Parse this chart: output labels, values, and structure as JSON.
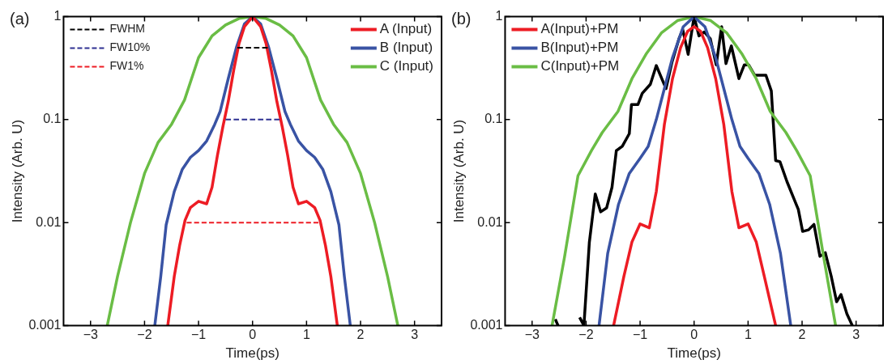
{
  "chart_data": [
    {
      "type": "line",
      "title": "(a)",
      "xlabel": "Time(ps)",
      "ylabel": "Intensity (Arb. U)",
      "log": "y",
      "xlim": [
        -3.5,
        3.5
      ],
      "xticks": [
        {
          "value": -3,
          "label": "−3"
        },
        {
          "value": -2,
          "label": "−2"
        },
        {
          "value": -1,
          "label": "−1"
        },
        0,
        1,
        2,
        3
      ],
      "ylim": [
        0.001,
        1
      ],
      "yticks": [
        0.001,
        0.01,
        0.1,
        1
      ],
      "legend": "top right",
      "grid": false,
      "series": [
        {
          "name": "A (Input)",
          "color": "#ed1c24",
          "x": [
            -1.57,
            -1.45,
            -1.35,
            -1.25,
            -1.15,
            -1.0,
            -0.85,
            -0.75,
            -0.65,
            -0.55,
            -0.45,
            -0.35,
            -0.25,
            -0.15,
            0,
            0.15,
            0.25,
            0.35,
            0.45,
            0.55,
            0.65,
            0.75,
            0.85,
            1.0,
            1.15,
            1.25,
            1.35,
            1.45,
            1.57
          ],
          "values": [
            0.001,
            0.003,
            0.006,
            0.0105,
            0.014,
            0.0161,
            0.0152,
            0.022,
            0.045,
            0.085,
            0.15,
            0.3,
            0.55,
            0.8,
            1,
            0.8,
            0.55,
            0.3,
            0.15,
            0.085,
            0.045,
            0.022,
            0.0152,
            0.0161,
            0.014,
            0.0105,
            0.006,
            0.003,
            0.001
          ]
        },
        {
          "name": "B (Input)",
          "color": "#3953a4",
          "x": [
            -1.81,
            -1.7,
            -1.6,
            -1.45,
            -1.3,
            -1.15,
            -1.0,
            -0.85,
            -0.7,
            -0.6,
            -0.45,
            -0.3,
            -0.15,
            0,
            0.15,
            0.3,
            0.45,
            0.6,
            0.7,
            0.85,
            1.0,
            1.15,
            1.3,
            1.45,
            1.6,
            1.7,
            1.81
          ],
          "values": [
            0.001,
            0.003,
            0.0095,
            0.02,
            0.033,
            0.043,
            0.05,
            0.062,
            0.09,
            0.12,
            0.25,
            0.5,
            0.85,
            1,
            0.85,
            0.5,
            0.25,
            0.12,
            0.09,
            0.062,
            0.05,
            0.043,
            0.033,
            0.02,
            0.0095,
            0.003,
            0.001
          ]
        },
        {
          "name": "C (Input)",
          "color": "#6abd45",
          "x": [
            -2.69,
            -2.5,
            -2.26,
            -2.0,
            -1.75,
            -1.5,
            -1.26,
            -1.0,
            -0.75,
            -0.5,
            -0.25,
            0,
            0.25,
            0.5,
            0.75,
            1.0,
            1.26,
            1.5,
            1.75,
            2.0,
            2.26,
            2.5,
            2.69
          ],
          "values": [
            0.001,
            0.003,
            0.01,
            0.03,
            0.06,
            0.09,
            0.155,
            0.4,
            0.65,
            0.83,
            0.96,
            1,
            0.96,
            0.83,
            0.65,
            0.4,
            0.155,
            0.09,
            0.06,
            0.03,
            0.01,
            0.003,
            0.001
          ]
        },
        {
          "name": "FWHM",
          "color": "#000000",
          "line_style": "dashed",
          "x": [
            -0.28,
            0.28
          ],
          "values": [
            0.5,
            0.5
          ]
        },
        {
          "name": "FW10%",
          "color": "#2e3192",
          "line_style": "dashed",
          "x": [
            -0.5,
            0.5
          ],
          "values": [
            0.1,
            0.1
          ]
        },
        {
          "name": "FW1%",
          "color": "#ed1c24",
          "line_style": "dashed",
          "x": [
            -1.22,
            1.22
          ],
          "values": [
            0.01,
            0.01
          ]
        }
      ]
    },
    {
      "type": "line",
      "title": "(b)",
      "xlabel": "Time(ps)",
      "ylabel": "Intensity (Arb. U)",
      "log": "y",
      "xlim": [
        -3.5,
        3.5
      ],
      "xticks": [
        {
          "value": -3,
          "label": "−3"
        },
        {
          "value": -2,
          "label": "−2"
        },
        {
          "value": -1,
          "label": "−1"
        },
        0,
        1,
        2,
        3
      ],
      "ylim": [
        0.001,
        1
      ],
      "yticks": [
        0.001,
        0.01,
        0.1,
        1
      ],
      "legend": "top left",
      "grid": false,
      "series": [
        {
          "name": "A(Input)+PM",
          "color": "#ed1c24",
          "x": [
            -1.49,
            -1.3,
            -1.15,
            -1.0,
            -0.83,
            -0.7,
            -0.55,
            -0.4,
            -0.25,
            -0.12,
            0,
            0.12,
            0.25,
            0.4,
            0.55,
            0.7,
            0.83,
            1.0,
            1.15,
            1.3,
            1.51
          ],
          "values": [
            0.001,
            0.003,
            0.0065,
            0.0097,
            0.0089,
            0.02,
            0.09,
            0.25,
            0.5,
            0.72,
            0.8,
            0.72,
            0.5,
            0.25,
            0.09,
            0.02,
            0.0089,
            0.0097,
            0.0065,
            0.003,
            0.001
          ]
        },
        {
          "name": "B(Input)+PM",
          "color": "#3953a4",
          "x": [
            -1.76,
            -1.6,
            -1.4,
            -1.2,
            -1.0,
            -0.85,
            -0.7,
            -0.55,
            -0.4,
            -0.2,
            0,
            0.2,
            0.4,
            0.55,
            0.7,
            0.85,
            1.0,
            1.2,
            1.4,
            1.6,
            1.79
          ],
          "values": [
            0.001,
            0.005,
            0.015,
            0.03,
            0.042,
            0.055,
            0.1,
            0.2,
            0.4,
            0.8,
            1,
            0.8,
            0.4,
            0.2,
            0.1,
            0.055,
            0.042,
            0.03,
            0.015,
            0.005,
            0.001
          ]
        },
        {
          "name": "C(Input)+PM",
          "color": "#6abd45",
          "x": [
            -2.63,
            -2.4,
            -2.15,
            -1.9,
            -1.7,
            -1.41,
            -1.15,
            -0.88,
            -0.6,
            -0.3,
            0,
            0.3,
            0.6,
            0.88,
            1.15,
            1.41,
            1.7,
            1.9,
            2.15,
            2.4,
            2.62
          ],
          "values": [
            0.001,
            0.0046,
            0.0285,
            0.05,
            0.075,
            0.12,
            0.25,
            0.44,
            0.7,
            0.92,
            1,
            0.92,
            0.7,
            0.44,
            0.25,
            0.12,
            0.075,
            0.05,
            0.0285,
            0.0046,
            0.001
          ]
        },
        {
          "color": "#000000",
          "x": [
            -2.57,
            -2.52,
            -2.3,
            -2.12,
            -2.04,
            -1.94,
            -1.83,
            -1.73,
            -1.62,
            -1.52,
            -1.44,
            -1.33,
            -1.2,
            -1.16,
            -1.04,
            -0.96,
            -0.81,
            -0.7,
            -0.52,
            -0.41,
            -0.28,
            -0.21,
            -0.11,
            0,
            0.09,
            0.19,
            0.3,
            0.41,
            0.51,
            0.59,
            0.69,
            0.83,
            0.93,
            1.01,
            1.12,
            1.22,
            1.33,
            1.43,
            1.51,
            1.59,
            1.72,
            1.85,
            1.93,
            2.01,
            2.12,
            2.22,
            2.33,
            2.43,
            2.54,
            2.64,
            2.72,
            2.83,
            2.93
          ],
          "values": [
            0.00115,
            0.001,
            null,
            0.0012,
            0.001,
            0.0064,
            0.019,
            0.0127,
            0.0139,
            0.022,
            0.05,
            0.055,
            0.073,
            0.14,
            0.14,
            0.18,
            0.22,
            0.335,
            0.2,
            0.36,
            0.61,
            0.75,
            0.43,
            1,
            0.65,
            0.71,
            0.61,
            0.34,
            0.8,
            0.35,
            0.52,
            0.25,
            0.34,
            0.34,
            0.27,
            0.27,
            0.27,
            0.19,
            0.04,
            0.039,
            0.025,
            0.017,
            0.0134,
            0.0082,
            0.0085,
            0.0096,
            0.0047,
            0.0051,
            0.003,
            0.0017,
            0.002,
            0.0013,
            0.001
          ]
        }
      ]
    }
  ]
}
